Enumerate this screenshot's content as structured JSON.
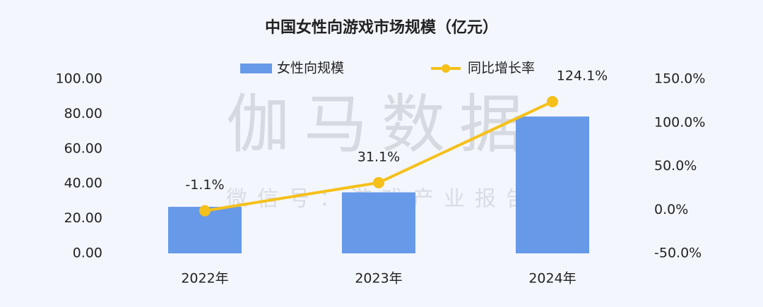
{
  "chart_data": {
    "type": "bar-line",
    "title": "中国女性向游戏市场规模（亿元）",
    "annotations": [
      "伽马数据",
      "微信号：游戏产业报告"
    ],
    "categories": [
      "2022年",
      "2023年",
      "2024年"
    ],
    "series": [
      {
        "name": "女性向规模",
        "type": "bar",
        "color": "#6699e8",
        "values": [
          26.7,
          35.0,
          78.5
        ]
      },
      {
        "name": "同比增长率",
        "type": "line",
        "axis": "y2",
        "color": "#f5c01a",
        "values": [
          -1.1,
          31.1,
          124.1
        ],
        "value_labels": [
          "-1.1%",
          "31.1%",
          "124.1%"
        ]
      }
    ],
    "ylim": [
      0,
      100
    ],
    "yticks": [
      {
        "value": 0,
        "label": "0.00"
      },
      {
        "value": 20,
        "label": "20.00"
      },
      {
        "value": 40,
        "label": "40.00"
      },
      {
        "value": 60,
        "label": "60.00"
      },
      {
        "value": 80,
        "label": "80.00"
      },
      {
        "value": 100,
        "label": "100.00"
      }
    ],
    "y2lim": [
      -50,
      150
    ],
    "y2ticks": [
      {
        "value": -50,
        "label": "-50.0%"
      },
      {
        "value": 0,
        "label": "0.0%"
      },
      {
        "value": 50,
        "label": "50.0%"
      },
      {
        "value": 100,
        "label": "100.0%"
      },
      {
        "value": 150,
        "label": "150.0%"
      }
    ],
    "grid": false
  }
}
